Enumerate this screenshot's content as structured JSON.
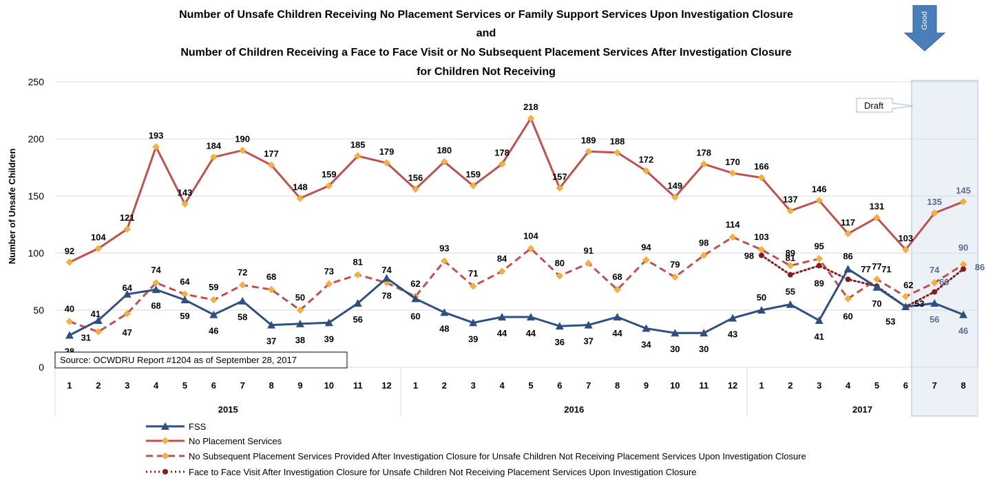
{
  "chart_data": {
    "type": "line",
    "title_lines": [
      "Number of Unsafe Children Receiving No Placement Services or Family Support Services  Upon Investigation Closure",
      "and",
      "Number of Children Receiving a Face to Face Visit or No Subsequent Placement Services After Investigation Closure",
      "for Children Not Receiving"
    ],
    "ylabel": "Number of Unsafe Children",
    "ylim": [
      0,
      250
    ],
    "yticks": [
      0,
      50,
      100,
      150,
      200,
      250
    ],
    "categories": [
      "1",
      "2",
      "3",
      "4",
      "5",
      "6",
      "7",
      "8",
      "9",
      "10",
      "11",
      "12",
      "1",
      "2",
      "3",
      "4",
      "5",
      "6",
      "7",
      "8",
      "9",
      "10",
      "11",
      "12",
      "1",
      "2",
      "3",
      "4",
      "5",
      "6",
      "7",
      "8"
    ],
    "years": [
      {
        "label": "2015",
        "start": 0,
        "end": 11
      },
      {
        "label": "2016",
        "start": 12,
        "end": 23
      },
      {
        "label": "2017",
        "start": 24,
        "end": 31
      }
    ],
    "draft_label": "Draft",
    "good_label": "Good",
    "source": "Source: OCWDRU Report #1204  as of September 28, 2017",
    "series": [
      {
        "name": "FSS",
        "color": "#2e4f7f",
        "style": "solid",
        "marker": "triangle",
        "values": [
          28,
          41,
          64,
          68,
          59,
          46,
          58,
          37,
          38,
          39,
          56,
          78,
          60,
          48,
          39,
          44,
          44,
          36,
          37,
          44,
          34,
          30,
          30,
          43,
          50,
          55,
          41,
          86,
          70,
          53,
          56,
          46
        ]
      },
      {
        "name": "No Placement Services",
        "color": "#c0504d",
        "style": "solid",
        "marker": "diamond",
        "values": [
          92,
          104,
          121,
          193,
          143,
          184,
          190,
          177,
          148,
          159,
          185,
          179,
          156,
          180,
          159,
          178,
          218,
          157,
          189,
          188,
          172,
          149,
          178,
          170,
          166,
          137,
          146,
          117,
          131,
          103,
          135,
          145
        ]
      },
      {
        "name": "No Subsequent Placement Services Provided After Investigation Closure for Unsafe Children Not Receiving Placement Services Upon Investigation Closure",
        "color": "#c0504d",
        "style": "dashed",
        "marker": "diamond",
        "values": [
          40,
          31,
          47,
          74,
          64,
          59,
          72,
          68,
          50,
          73,
          81,
          74,
          62,
          93,
          71,
          84,
          104,
          80,
          91,
          68,
          94,
          79,
          98,
          114,
          103,
          89,
          95,
          60,
          77,
          62,
          74,
          90
        ]
      },
      {
        "name": "Face to Face Visit After Investigation Closure for Unsafe Children Not Receiving Placement Services Upon Investigation Closure",
        "color": "#8b1a1a",
        "style": "dotted",
        "marker": "circle",
        "values": [
          null,
          null,
          null,
          null,
          null,
          null,
          null,
          null,
          null,
          null,
          null,
          null,
          null,
          null,
          null,
          null,
          null,
          null,
          null,
          null,
          null,
          null,
          null,
          null,
          98,
          81,
          89,
          77,
          71,
          53,
          66,
          86
        ]
      }
    ]
  }
}
